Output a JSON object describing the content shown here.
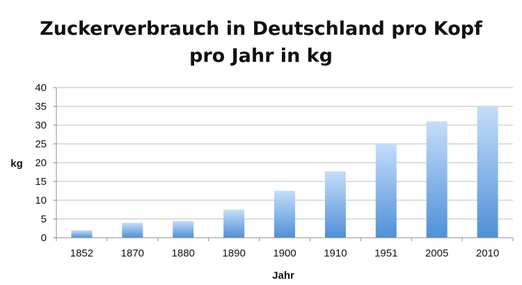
{
  "chart_data": {
    "type": "bar",
    "title_lines": [
      "Zuckerverbrauch in Deutschland pro Kopf",
      "pro Jahr in kg"
    ],
    "categories": [
      "1852",
      "1870",
      "1880",
      "1890",
      "1900",
      "1910",
      "1951",
      "2005",
      "2010"
    ],
    "values": [
      2,
      4,
      4.5,
      7.5,
      12.5,
      17.7,
      25,
      31,
      35
    ],
    "xlabel": "Jahr",
    "ylabel": "kg",
    "ylim": [
      0,
      40
    ],
    "yticks": [
      "0",
      "5",
      "10",
      "15",
      "20",
      "25",
      "30",
      "35",
      "40"
    ],
    "grid": true,
    "legend": "none",
    "colors": {
      "bar_top": "#c5ddfa",
      "bar_bottom": "#4f90d8"
    }
  }
}
